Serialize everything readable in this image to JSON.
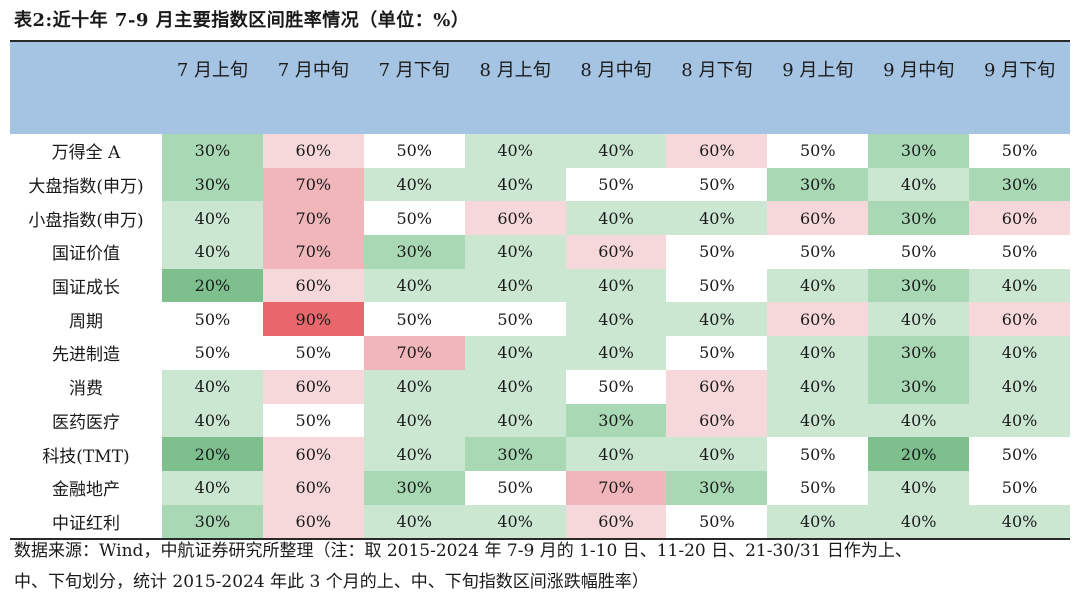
{
  "title": "表2:近十年 7-9 月主要指数区间胜率情况（单位：%）",
  "columns": [
    "7 月上旬",
    "7 月中旬",
    "7 月下旬",
    "8 月上旬",
    "8 月中旬",
    "8 月下旬",
    "9 月上旬",
    "9 月中旬",
    "9 月下旬"
  ],
  "rows": [
    {
      "label": "万得全 A",
      "values": [
        "30%",
        "60%",
        "50%",
        "40%",
        "40%",
        "60%",
        "50%",
        "30%",
        "50%"
      ]
    },
    {
      "label": "大盘指数(申万)",
      "values": [
        "30%",
        "70%",
        "40%",
        "40%",
        "50%",
        "50%",
        "30%",
        "40%",
        "30%"
      ]
    },
    {
      "label": "小盘指数(申万)",
      "values": [
        "40%",
        "70%",
        "50%",
        "60%",
        "40%",
        "40%",
        "60%",
        "30%",
        "60%"
      ]
    },
    {
      "label": "国证价值",
      "values": [
        "40%",
        "70%",
        "30%",
        "40%",
        "60%",
        "50%",
        "50%",
        "50%",
        "50%"
      ]
    },
    {
      "label": "国证成长",
      "values": [
        "20%",
        "60%",
        "40%",
        "40%",
        "40%",
        "50%",
        "40%",
        "30%",
        "40%"
      ]
    },
    {
      "label": "周期",
      "values": [
        "50%",
        "90%",
        "50%",
        "50%",
        "40%",
        "40%",
        "60%",
        "40%",
        "60%"
      ]
    },
    {
      "label": "先进制造",
      "values": [
        "50%",
        "50%",
        "70%",
        "40%",
        "40%",
        "50%",
        "40%",
        "30%",
        "40%"
      ]
    },
    {
      "label": "消费",
      "values": [
        "40%",
        "60%",
        "40%",
        "40%",
        "50%",
        "60%",
        "40%",
        "30%",
        "40%"
      ]
    },
    {
      "label": "医药医疗",
      "values": [
        "40%",
        "50%",
        "40%",
        "40%",
        "30%",
        "60%",
        "40%",
        "40%",
        "40%"
      ]
    },
    {
      "label": "科技(TMT)",
      "values": [
        "20%",
        "60%",
        "40%",
        "30%",
        "40%",
        "40%",
        "50%",
        "20%",
        "50%"
      ]
    },
    {
      "label": "金融地产",
      "values": [
        "40%",
        "60%",
        "30%",
        "50%",
        "70%",
        "30%",
        "50%",
        "40%",
        "50%"
      ]
    },
    {
      "label": "中证红利",
      "values": [
        "30%",
        "60%",
        "40%",
        "40%",
        "60%",
        "50%",
        "40%",
        "40%",
        "40%"
      ]
    }
  ],
  "note_line1": "数据来源：Wind，中航证券研究所整理（注：取 2015-2024 年 7-9 月的 1-10 日、11-20 日、21-30/31 日作为上、",
  "note_line2": "中、下旬划分，统计 2015-2024 年此 3 个月的上、中、下旬指数区间涨跌幅胜率）",
  "colors": {
    "header_bg": "#a5c3e2",
    "p20": "#7dc08e",
    "p30": "#a9d8b4",
    "p40": "#cbe7d2",
    "p50": "#ffffff",
    "p60": "#f6d8db",
    "p70": "#f0b6ba",
    "p90": "#e8676c"
  }
}
